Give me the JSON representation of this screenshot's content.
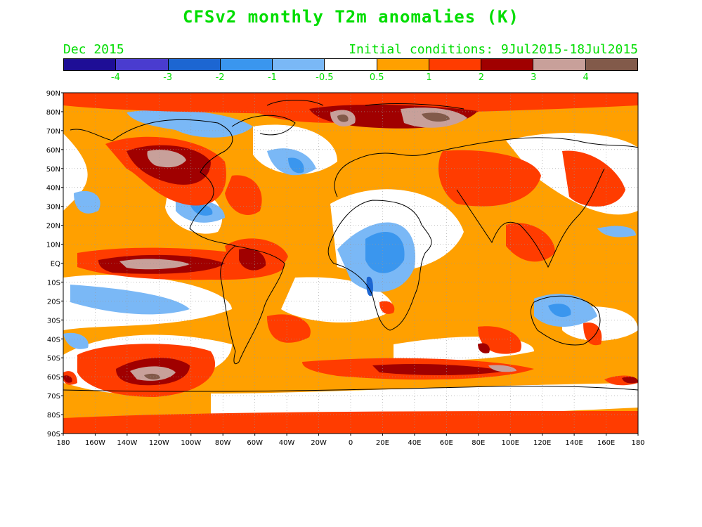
{
  "title": "CFSv2 monthly T2m anomalies (K)",
  "valid_month": "Dec 2015",
  "initial_conditions": "Initial conditions: 9Jul2015-18Jul2015",
  "colorbar": {
    "colors": [
      "#1e0e96",
      "#4a3ccf",
      "#1c66d2",
      "#3a96ee",
      "#7ab8f6",
      "#ffffff",
      "#ffa000",
      "#ff3c00",
      "#a00000",
      "#c8a09a",
      "#825a4a"
    ],
    "labels": [
      "-4",
      "-3",
      "-2",
      "-1",
      "-0.5",
      "0.5",
      "1",
      "2",
      "3",
      "4"
    ]
  },
  "map": {
    "lat_labels": [
      "90N",
      "80N",
      "70N",
      "60N",
      "50N",
      "40N",
      "30N",
      "20N",
      "10N",
      "EQ",
      "10S",
      "20S",
      "30S",
      "40S",
      "50S",
      "60S",
      "70S",
      "80S",
      "90S"
    ],
    "lon_labels": [
      "180",
      "160W",
      "140W",
      "120W",
      "100W",
      "80W",
      "60W",
      "40W",
      "20W",
      "0",
      "20E",
      "40E",
      "60E",
      "80E",
      "100E",
      "120E",
      "140E",
      "160E",
      "180"
    ]
  }
}
